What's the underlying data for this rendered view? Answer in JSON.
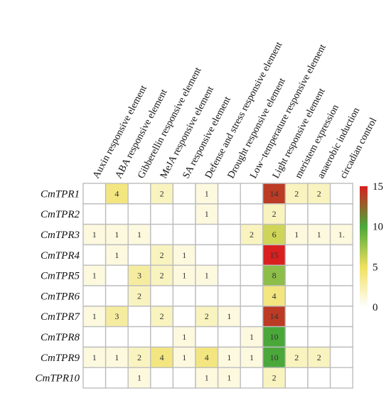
{
  "chart_data": {
    "type": "heatmap",
    "rows": [
      "CmTPR1",
      "CmTPR2",
      "CmTPR3",
      "CmTPR4",
      "CmTPR5",
      "CmTPR6",
      "CmTPR7",
      "CmTPR8",
      "CmTPR9",
      "CmTPR10"
    ],
    "columns": [
      "Auxin responsive element",
      "ABA responsive element",
      "Gibberellin responsive element",
      "MeJA responsive element",
      "SA responsive element",
      "Defense and stress responsive element",
      "Drought responsive element",
      "Low−temperature responsive element",
      "Light responsive element",
      "meristem expression",
      "anaerobic induction",
      "circadian control"
    ],
    "values": [
      [
        null,
        4,
        null,
        2,
        null,
        1,
        null,
        null,
        14,
        2,
        2,
        null
      ],
      [
        null,
        null,
        null,
        null,
        null,
        1,
        null,
        null,
        2,
        null,
        null,
        null
      ],
      [
        1,
        1,
        1,
        null,
        null,
        null,
        null,
        2,
        6,
        1,
        1,
        1
      ],
      [
        null,
        1,
        null,
        2,
        1,
        null,
        null,
        null,
        15,
        null,
        null,
        null
      ],
      [
        1,
        null,
        3,
        2,
        1,
        1,
        null,
        null,
        8,
        null,
        null,
        null
      ],
      [
        null,
        null,
        2,
        null,
        null,
        null,
        null,
        null,
        4,
        null,
        null,
        null
      ],
      [
        1,
        3,
        null,
        2,
        null,
        2,
        1,
        null,
        14,
        null,
        null,
        null
      ],
      [
        null,
        null,
        null,
        null,
        1,
        null,
        null,
        1,
        10,
        null,
        null,
        null
      ],
      [
        1,
        1,
        2,
        4,
        1,
        4,
        1,
        1,
        10,
        2,
        2,
        null
      ],
      [
        null,
        null,
        1,
        null,
        null,
        1,
        1,
        null,
        2,
        null,
        null,
        null
      ]
    ],
    "cell_labels": [
      [
        "",
        "4",
        "",
        "2",
        "",
        "1",
        "",
        "",
        "14",
        "2",
        "2",
        ""
      ],
      [
        "",
        "",
        "",
        "",
        "",
        "1",
        "",
        "",
        "2",
        "",
        "",
        ""
      ],
      [
        "1",
        "1",
        "1",
        "",
        "",
        "",
        "",
        "2",
        "6",
        "1",
        "1",
        "1."
      ],
      [
        "",
        "1",
        "",
        "2",
        "1",
        "",
        "",
        "",
        "15",
        "",
        "",
        ""
      ],
      [
        "1",
        "",
        "3",
        "2",
        "1",
        "1",
        "",
        "",
        "8",
        "",
        "",
        ""
      ],
      [
        "",
        "",
        "2",
        "",
        "",
        "",
        "",
        "",
        "4",
        "",
        "",
        ""
      ],
      [
        "1",
        "3",
        "",
        "2",
        "",
        "2",
        "1",
        "",
        "14",
        "",
        "",
        ""
      ],
      [
        "",
        "",
        "",
        "",
        "1",
        "",
        "",
        "1",
        "10",
        "",
        "",
        ""
      ],
      [
        "1",
        "1",
        "2",
        "4",
        "1",
        "4",
        "1",
        "1",
        "10",
        "2",
        "2",
        ""
      ],
      [
        "",
        "",
        "1",
        "",
        "",
        "1",
        "1",
        "",
        "2",
        "",
        "",
        ""
      ]
    ],
    "color_scale": {
      "min": 0,
      "max": 15,
      "ticks": [
        "15",
        "10",
        "5",
        "0"
      ],
      "stops": [
        "#ffffff",
        "#f0e060",
        "#4aa83a",
        "#d82020"
      ]
    },
    "title": "",
    "xlabel": "",
    "ylabel": ""
  }
}
